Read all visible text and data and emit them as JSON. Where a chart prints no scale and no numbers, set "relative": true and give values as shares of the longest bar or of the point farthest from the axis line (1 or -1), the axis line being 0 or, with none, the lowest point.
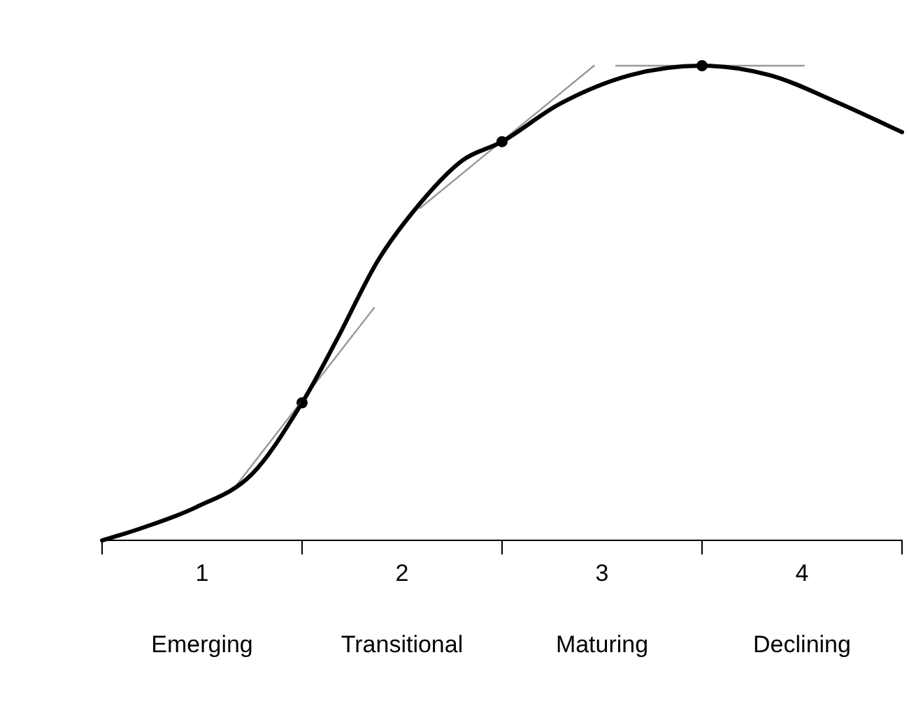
{
  "chart_data": {
    "type": "line",
    "relative": true,
    "xlim": [
      0,
      4
    ],
    "xticks": [
      {
        "value": 0,
        "label": null
      },
      {
        "value": 0.5,
        "label": "1"
      },
      {
        "value": 1,
        "label": null
      },
      {
        "value": 1.5,
        "label": "2"
      },
      {
        "value": 2,
        "label": null
      },
      {
        "value": 2.5,
        "label": "3"
      },
      {
        "value": 3,
        "label": null
      },
      {
        "value": 3.5,
        "label": "4"
      },
      {
        "value": 4,
        "label": null
      }
    ],
    "annotations": [
      "Emerging",
      "Transitional",
      "Maturing",
      "Declining"
    ],
    "grid": false,
    "legend": false,
    "marker": "none",
    "line_style": "solid",
    "series": [
      {
        "color": "#000000",
        "x": [
          0,
          0.19,
          0.47,
          0.75,
          1.0,
          1.17,
          1.38,
          1.59,
          1.8,
          2.0,
          2.29,
          2.64,
          3.0,
          3.34,
          3.69,
          4.0
        ],
        "values": [
          0,
          0.025,
          0.07,
          0.14,
          0.29,
          0.42,
          0.59,
          0.71,
          0.8,
          0.84,
          0.92,
          0.98,
          1.0,
          0.98,
          0.92,
          0.86
        ]
      },
      {
        "color": "#999999",
        "x": [
          0.66,
          1.36
        ],
        "values": [
          0.11,
          0.49
        ]
      },
      {
        "color": "#999999",
        "x": [
          1.59,
          2.46
        ],
        "values": [
          0.7,
          1.0
        ]
      },
      {
        "color": "#999999",
        "x": [
          2.57,
          3.51
        ],
        "values": [
          1.0,
          1.0
        ]
      },
      {
        "type": "scatter",
        "color": "#000000",
        "marker": "circle",
        "x": [
          1.0,
          2.0,
          3.0
        ],
        "values": [
          0.29,
          0.84,
          1.0
        ]
      }
    ]
  }
}
